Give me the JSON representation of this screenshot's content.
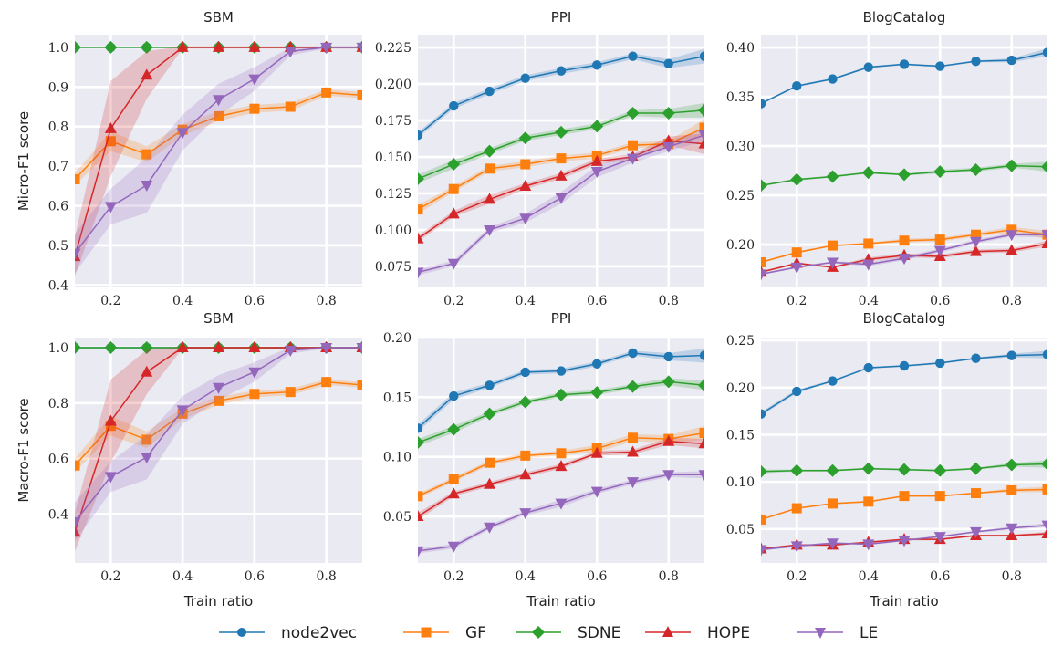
{
  "figure": {
    "legend_position": "bottom-center",
    "style": "seaborn-darkgrid"
  },
  "series_meta": [
    {
      "name": "node2vec",
      "color": "#1f77b4",
      "marker": "circle"
    },
    {
      "name": "GF",
      "color": "#ff7f0e",
      "marker": "square"
    },
    {
      "name": "SDNE",
      "color": "#2ca02c",
      "marker": "diamond"
    },
    {
      "name": "HOPE",
      "color": "#d62728",
      "marker": "triangle-up"
    },
    {
      "name": "LE",
      "color": "#9467bd",
      "marker": "triangle-down"
    }
  ],
  "chart_data": [
    {
      "type": "line",
      "title": "SBM",
      "xlabel": "",
      "ylabel": "Micro-F1 score",
      "xlim": [
        0.1,
        0.9
      ],
      "ylim": [
        0.394,
        1.032
      ],
      "xticks": [
        0.2,
        0.4,
        0.6,
        0.8
      ],
      "xtick_labels": [
        "0.2",
        "0.4",
        "0.6",
        "0.8"
      ],
      "yticks": [
        0.4,
        0.5,
        0.6,
        0.7,
        0.8,
        0.9,
        1.0
      ],
      "ytick_labels": [
        "0.4",
        "0.5",
        "0.6",
        "0.7",
        "0.8",
        "0.9",
        "1.0"
      ],
      "grid": true,
      "x": [
        0.1,
        0.2,
        0.3,
        0.4,
        0.5,
        0.6,
        0.7,
        0.8,
        0.9
      ],
      "series": [
        {
          "name": "node2vec",
          "values": [
            1.0,
            1.0,
            1.0,
            1.0,
            1.0,
            1.0,
            1.0,
            1.0,
            1.0
          ],
          "band": [
            0,
            0,
            0,
            0,
            0,
            0,
            0,
            0,
            0
          ]
        },
        {
          "name": "GF",
          "values": [
            0.667,
            0.763,
            0.73,
            0.792,
            0.826,
            0.845,
            0.85,
            0.886,
            0.879
          ],
          "band": [
            0.015,
            0.025,
            0.02,
            0.015,
            0.012,
            0.01,
            0.01,
            0.008,
            0.008
          ]
        },
        {
          "name": "SDNE",
          "values": [
            1.0,
            1.0,
            1.0,
            1.0,
            1.0,
            1.0,
            1.0,
            1.0,
            1.0
          ],
          "band": [
            0,
            0,
            0,
            0,
            0,
            0,
            0,
            0,
            0
          ]
        },
        {
          "name": "HOPE",
          "values": [
            0.472,
            0.795,
            0.93,
            1.0,
            1.0,
            1.0,
            1.0,
            1.0,
            1.0
          ],
          "band": [
            0.05,
            0.12,
            0.06,
            0.003,
            0.003,
            0.003,
            0.003,
            0.003,
            0.003
          ]
        },
        {
          "name": "LE",
          "values": [
            0.48,
            0.598,
            0.652,
            0.785,
            0.868,
            0.92,
            0.99,
            1.0,
            1.0
          ],
          "band": [
            0.05,
            0.045,
            0.07,
            0.045,
            0.04,
            0.03,
            0.01,
            0.003,
            0.003
          ]
        }
      ]
    },
    {
      "type": "line",
      "title": "PPI",
      "xlabel": "",
      "ylabel": "",
      "xlim": [
        0.1,
        0.9
      ],
      "ylim": [
        0.0606,
        0.2338
      ],
      "xticks": [
        0.2,
        0.4,
        0.6,
        0.8
      ],
      "xtick_labels": [
        "0.2",
        "0.4",
        "0.6",
        "0.8"
      ],
      "yticks": [
        0.075,
        0.1,
        0.125,
        0.15,
        0.175,
        0.2,
        0.225
      ],
      "ytick_labels": [
        "0.075",
        "0.100",
        "0.125",
        "0.150",
        "0.175",
        "0.200",
        "0.225"
      ],
      "grid": true,
      "x": [
        0.1,
        0.2,
        0.3,
        0.4,
        0.5,
        0.6,
        0.7,
        0.8,
        0.9
      ],
      "series": [
        {
          "name": "node2vec",
          "values": [
            0.165,
            0.185,
            0.195,
            0.204,
            0.209,
            0.213,
            0.219,
            0.214,
            0.219
          ],
          "band": [
            0.002,
            0.002,
            0.002,
            0.002,
            0.002,
            0.002,
            0.002,
            0.003,
            0.005
          ]
        },
        {
          "name": "GF",
          "values": [
            0.114,
            0.128,
            0.142,
            0.145,
            0.149,
            0.151,
            0.158,
            0.159,
            0.17
          ],
          "band": [
            0.003,
            0.002,
            0.002,
            0.002,
            0.002,
            0.002,
            0.002,
            0.002,
            0.006
          ]
        },
        {
          "name": "SDNE",
          "values": [
            0.135,
            0.145,
            0.154,
            0.163,
            0.167,
            0.171,
            0.18,
            0.18,
            0.182
          ],
          "band": [
            0.003,
            0.003,
            0.002,
            0.002,
            0.002,
            0.002,
            0.002,
            0.003,
            0.005
          ]
        },
        {
          "name": "HOPE",
          "values": [
            0.094,
            0.111,
            0.121,
            0.13,
            0.137,
            0.147,
            0.15,
            0.161,
            0.159
          ],
          "band": [
            0.002,
            0.002,
            0.003,
            0.002,
            0.002,
            0.002,
            0.002,
            0.003,
            0.007
          ]
        },
        {
          "name": "LE",
          "values": [
            0.071,
            0.077,
            0.1,
            0.108,
            0.122,
            0.14,
            0.149,
            0.157,
            0.165
          ],
          "band": [
            0.002,
            0.002,
            0.002,
            0.003,
            0.004,
            0.004,
            0.003,
            0.003,
            0.004
          ]
        }
      ]
    },
    {
      "type": "line",
      "title": "BlogCatalog",
      "xlabel": "",
      "ylabel": "",
      "xlim": [
        0.1,
        0.9
      ],
      "ylim": [
        0.1565,
        0.413
      ],
      "xticks": [
        0.2,
        0.4,
        0.6,
        0.8
      ],
      "xtick_labels": [
        "0.2",
        "0.4",
        "0.6",
        "0.8"
      ],
      "yticks": [
        0.2,
        0.25,
        0.3,
        0.35,
        0.4
      ],
      "ytick_labels": [
        "0.20",
        "0.25",
        "0.30",
        "0.35",
        "0.40"
      ],
      "grid": true,
      "x": [
        0.1,
        0.2,
        0.3,
        0.4,
        0.5,
        0.6,
        0.7,
        0.8,
        0.9
      ],
      "series": [
        {
          "name": "node2vec",
          "values": [
            0.343,
            0.361,
            0.368,
            0.38,
            0.383,
            0.381,
            0.386,
            0.387,
            0.395
          ],
          "band": [
            0.001,
            0.001,
            0.001,
            0.001,
            0.001,
            0.001,
            0.001,
            0.002,
            0.004
          ]
        },
        {
          "name": "GF",
          "values": [
            0.182,
            0.192,
            0.199,
            0.201,
            0.204,
            0.205,
            0.21,
            0.215,
            0.21
          ],
          "band": [
            0.001,
            0.001,
            0.001,
            0.001,
            0.002,
            0.002,
            0.002,
            0.003,
            0.004
          ]
        },
        {
          "name": "SDNE",
          "values": [
            0.26,
            0.266,
            0.269,
            0.273,
            0.271,
            0.274,
            0.276,
            0.28,
            0.279
          ],
          "band": [
            0.001,
            0.001,
            0.001,
            0.001,
            0.001,
            0.002,
            0.002,
            0.002,
            0.005
          ]
        },
        {
          "name": "HOPE",
          "values": [
            0.172,
            0.181,
            0.177,
            0.185,
            0.189,
            0.188,
            0.193,
            0.194,
            0.201
          ],
          "band": [
            0.001,
            0.001,
            0.001,
            0.002,
            0.002,
            0.002,
            0.002,
            0.002,
            0.003
          ]
        },
        {
          "name": "LE",
          "values": [
            0.17,
            0.177,
            0.182,
            0.18,
            0.186,
            0.194,
            0.203,
            0.21,
            0.21
          ],
          "band": [
            0.001,
            0.001,
            0.001,
            0.002,
            0.002,
            0.002,
            0.002,
            0.002,
            0.003
          ]
        }
      ]
    },
    {
      "type": "line",
      "title": "SBM",
      "xlabel": "Train ratio",
      "ylabel": "Macro-F1 score",
      "xlim": [
        0.1,
        0.9
      ],
      "ylim": [
        0.224,
        1.036
      ],
      "xticks": [
        0.2,
        0.4,
        0.6,
        0.8
      ],
      "xtick_labels": [
        "0.2",
        "0.4",
        "0.6",
        "0.8"
      ],
      "yticks": [
        0.4,
        0.6,
        0.8,
        1.0
      ],
      "ytick_labels": [
        "0.4",
        "0.6",
        "0.8",
        "1.0"
      ],
      "grid": true,
      "x": [
        0.1,
        0.2,
        0.3,
        0.4,
        0.5,
        0.6,
        0.7,
        0.8,
        0.9
      ],
      "series": [
        {
          "name": "node2vec",
          "values": [
            1.0,
            1.0,
            1.0,
            1.0,
            1.0,
            1.0,
            1.0,
            1.0,
            1.0
          ],
          "band": [
            0,
            0,
            0,
            0,
            0,
            0,
            0,
            0,
            0
          ]
        },
        {
          "name": "GF",
          "values": [
            0.575,
            0.718,
            0.668,
            0.762,
            0.808,
            0.833,
            0.84,
            0.876,
            0.865
          ],
          "band": [
            0.025,
            0.035,
            0.03,
            0.02,
            0.015,
            0.012,
            0.012,
            0.01,
            0.01
          ]
        },
        {
          "name": "SDNE",
          "values": [
            1.0,
            1.0,
            1.0,
            1.0,
            1.0,
            1.0,
            1.0,
            1.0,
            1.0
          ],
          "band": [
            0,
            0,
            0,
            0,
            0,
            0,
            0,
            0,
            0
          ]
        },
        {
          "name": "HOPE",
          "values": [
            0.335,
            0.735,
            0.912,
            1.0,
            1.0,
            1.0,
            1.0,
            1.0,
            1.0
          ],
          "band": [
            0.07,
            0.15,
            0.08,
            0.003,
            0.003,
            0.003,
            0.003,
            0.003,
            0.003
          ]
        },
        {
          "name": "LE",
          "values": [
            0.372,
            0.535,
            0.605,
            0.775,
            0.856,
            0.912,
            0.99,
            1.0,
            1.0
          ],
          "band": [
            0.07,
            0.055,
            0.08,
            0.05,
            0.045,
            0.035,
            0.012,
            0.003,
            0.003
          ]
        }
      ]
    },
    {
      "type": "line",
      "title": "PPI",
      "xlabel": "Train ratio",
      "ylabel": "",
      "xlim": [
        0.1,
        0.9
      ],
      "ylim": [
        0.011,
        0.2
      ],
      "xticks": [
        0.2,
        0.4,
        0.6,
        0.8
      ],
      "xtick_labels": [
        "0.2",
        "0.4",
        "0.6",
        "0.8"
      ],
      "yticks": [
        0.05,
        0.1,
        0.15,
        0.2
      ],
      "ytick_labels": [
        "0.05",
        "0.10",
        "0.15",
        "0.20"
      ],
      "grid": true,
      "x": [
        0.1,
        0.2,
        0.3,
        0.4,
        0.5,
        0.6,
        0.7,
        0.8,
        0.9
      ],
      "series": [
        {
          "name": "node2vec",
          "values": [
            0.124,
            0.151,
            0.16,
            0.171,
            0.172,
            0.178,
            0.187,
            0.184,
            0.185
          ],
          "band": [
            0.003,
            0.003,
            0.002,
            0.002,
            0.002,
            0.002,
            0.002,
            0.003,
            0.006
          ]
        },
        {
          "name": "GF",
          "values": [
            0.067,
            0.081,
            0.095,
            0.101,
            0.103,
            0.107,
            0.116,
            0.115,
            0.12
          ],
          "band": [
            0.002,
            0.002,
            0.002,
            0.002,
            0.002,
            0.003,
            0.003,
            0.003,
            0.006
          ]
        },
        {
          "name": "SDNE",
          "values": [
            0.112,
            0.123,
            0.136,
            0.146,
            0.152,
            0.154,
            0.159,
            0.163,
            0.16
          ],
          "band": [
            0.003,
            0.003,
            0.002,
            0.002,
            0.002,
            0.002,
            0.002,
            0.003,
            0.004
          ]
        },
        {
          "name": "HOPE",
          "values": [
            0.05,
            0.069,
            0.077,
            0.085,
            0.092,
            0.103,
            0.104,
            0.113,
            0.111
          ],
          "band": [
            0.003,
            0.002,
            0.002,
            0.002,
            0.002,
            0.002,
            0.002,
            0.003,
            0.004
          ]
        },
        {
          "name": "LE",
          "values": [
            0.021,
            0.025,
            0.041,
            0.053,
            0.061,
            0.071,
            0.079,
            0.085,
            0.085
          ],
          "band": [
            0.002,
            0.002,
            0.002,
            0.002,
            0.003,
            0.002,
            0.002,
            0.002,
            0.003
          ]
        }
      ]
    },
    {
      "type": "line",
      "title": "BlogCatalog",
      "xlabel": "Train ratio",
      "ylabel": "",
      "xlim": [
        0.1,
        0.9
      ],
      "ylim": [
        0.014,
        0.253
      ],
      "xticks": [
        0.2,
        0.4,
        0.6,
        0.8
      ],
      "xtick_labels": [
        "0.2",
        "0.4",
        "0.6",
        "0.8"
      ],
      "yticks": [
        0.05,
        0.1,
        0.15,
        0.2,
        0.25
      ],
      "ytick_labels": [
        "0.05",
        "0.10",
        "0.15",
        "0.20",
        "0.25"
      ],
      "grid": true,
      "x": [
        0.1,
        0.2,
        0.3,
        0.4,
        0.5,
        0.6,
        0.7,
        0.8,
        0.9
      ],
      "series": [
        {
          "name": "node2vec",
          "values": [
            0.172,
            0.196,
            0.207,
            0.221,
            0.223,
            0.226,
            0.231,
            0.234,
            0.235
          ],
          "band": [
            0.002,
            0.002,
            0.001,
            0.001,
            0.001,
            0.001,
            0.001,
            0.002,
            0.004
          ]
        },
        {
          "name": "GF",
          "values": [
            0.06,
            0.072,
            0.077,
            0.079,
            0.085,
            0.085,
            0.088,
            0.091,
            0.092
          ],
          "band": [
            0.001,
            0.001,
            0.001,
            0.001,
            0.001,
            0.001,
            0.001,
            0.002,
            0.003
          ]
        },
        {
          "name": "SDNE",
          "values": [
            0.111,
            0.112,
            0.112,
            0.114,
            0.113,
            0.112,
            0.114,
            0.118,
            0.119
          ],
          "band": [
            0.002,
            0.001,
            0.001,
            0.001,
            0.001,
            0.001,
            0.001,
            0.002,
            0.004
          ]
        },
        {
          "name": "HOPE",
          "values": [
            0.029,
            0.033,
            0.033,
            0.036,
            0.039,
            0.039,
            0.043,
            0.043,
            0.045
          ],
          "band": [
            0.001,
            0.001,
            0.001,
            0.001,
            0.001,
            0.001,
            0.001,
            0.001,
            0.002
          ]
        },
        {
          "name": "LE",
          "values": [
            0.028,
            0.032,
            0.035,
            0.034,
            0.038,
            0.042,
            0.047,
            0.051,
            0.054
          ],
          "band": [
            0.001,
            0.001,
            0.001,
            0.001,
            0.001,
            0.001,
            0.001,
            0.002,
            0.002
          ]
        }
      ]
    }
  ]
}
